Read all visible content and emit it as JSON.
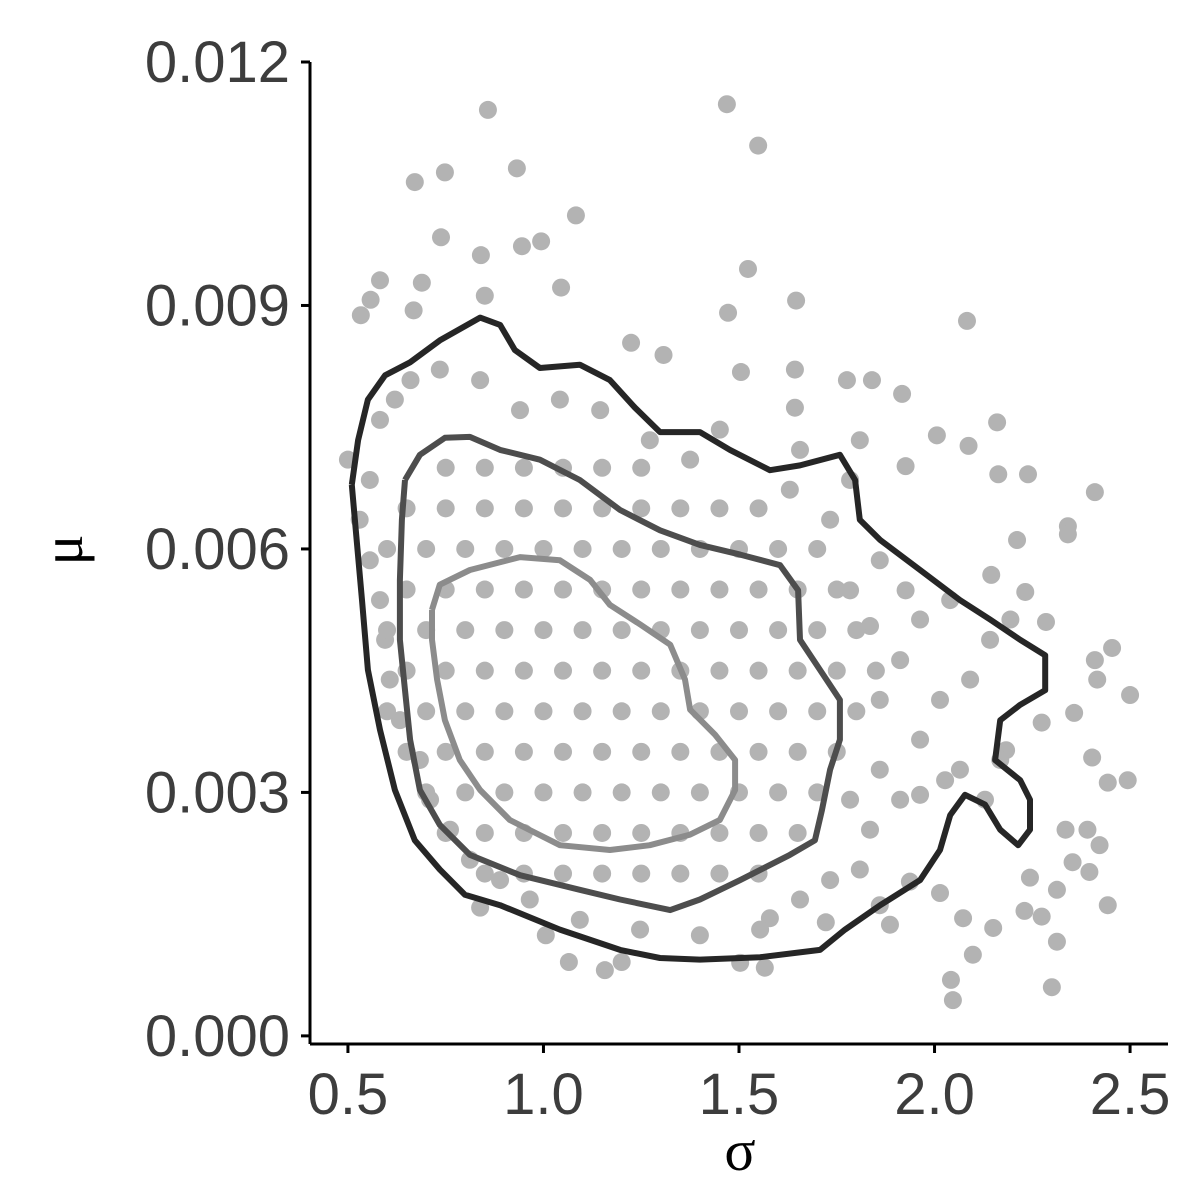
{
  "chart_data": {
    "type": "scatter",
    "xlabel": "σ",
    "ylabel": "μ",
    "xlim": [
      0.403,
      2.597
    ],
    "ylim": [
      -0.0001,
      0.012
    ],
    "xticks": [
      0.5,
      {
        "value": 1,
        "label": "1.0"
      },
      1.5,
      {
        "value": 2,
        "label": "2.0"
      },
      2.5
    ],
    "yticks": [
      {
        "value": 0,
        "label": "0.000"
      },
      0.003,
      0.006,
      0.009,
      0.012
    ],
    "points": {
      "color": "#b3b3b3",
      "x": [
        0.858,
        1.469,
        1.549,
        0.932,
        0.671,
        0.748,
        1.083,
        0.738,
        0.84,
        0.945,
        0.994,
        1.523,
        1.646,
        2.083,
        1.472,
        0.582,
        0.533,
        0.558,
        0.689,
        0.668,
        0.85,
        1.045,
        1.224,
        1.307,
        1.505,
        1.643,
        1.776,
        1.84,
        1.917,
        1.643,
        2.16,
        2.006,
        2.087,
        1.926,
        2.163,
        2.239,
        2.41,
        2.341,
        2.341,
        2.211,
        2.145,
        2.232,
        2.285,
        2.454,
        2.41,
        2.5,
        2.416,
        2.357,
        2.274,
        2.403,
        2.443,
        2.494,
        2.335,
        2.391,
        2.422,
        2.353,
        2.396,
        2.244,
        2.313,
        2.443,
        2.274,
        2.23,
        2.313,
        2.15,
        2.073,
        2.098,
        2.042,
        2.047,
        2.3,
        1.886,
        1.86,
        2.014,
        1.937,
        1.809,
        1.722,
        1.579,
        1.566,
        1.503,
        1.157,
        1.2,
        1.065,
        1.006,
        0.838,
        2.183,
        2.129,
        2.168,
        2.065,
        2.027,
        1.963,
        1.912,
        1.86,
        1.835,
        1.784,
        1.963,
        2.014,
        2.091,
        2.142,
        2.194,
        1.86,
        1.912,
        1.963,
        2.04,
        1.835,
        1.784,
        1.86,
        1.926,
        1.733,
        1.784,
        1.63,
        1.656,
        1.809,
        1.451,
        1.375,
        1.272,
        1.145,
        1.042,
        0.94,
        0.838,
        0.735,
        0.66,
        0.62,
        0.582,
        0.5,
        0.556,
        0.53,
        0.556,
        0.582,
        0.595,
        0.607,
        0.633,
        0.684,
        0.71,
        0.761,
        0.812,
        0.889,
        0.965,
        1.093,
        1.247,
        1.4,
        1.554,
        1.656,
        1.733,
        0.75,
        0.85,
        0.95,
        1.05,
        1.15,
        1.25,
        0.65,
        0.75,
        0.85,
        0.95,
        1.05,
        1.15,
        1.25,
        1.35,
        1.45,
        1.55,
        0.6,
        0.7,
        0.8,
        0.9,
        1.0,
        1.1,
        1.2,
        1.3,
        1.4,
        1.5,
        1.6,
        1.7,
        0.65,
        0.75,
        0.85,
        0.95,
        1.05,
        1.15,
        1.25,
        1.35,
        1.45,
        1.55,
        1.65,
        1.75,
        0.6,
        0.7,
        0.8,
        0.9,
        1.0,
        1.1,
        1.2,
        1.3,
        1.4,
        1.5,
        1.6,
        1.7,
        1.8,
        0.65,
        0.75,
        0.85,
        0.95,
        1.05,
        1.15,
        1.25,
        1.35,
        1.45,
        1.55,
        1.65,
        1.75,
        1.85,
        0.6,
        0.7,
        0.8,
        0.9,
        1.0,
        1.1,
        1.2,
        1.3,
        1.4,
        1.5,
        1.6,
        1.7,
        1.8,
        0.65,
        0.75,
        0.85,
        0.95,
        1.05,
        1.15,
        1.25,
        1.35,
        1.45,
        1.55,
        1.65,
        1.75,
        0.7,
        0.8,
        0.9,
        1.0,
        1.1,
        1.2,
        1.3,
        1.4,
        1.5,
        1.6,
        1.7,
        0.75,
        0.85,
        0.95,
        1.05,
        1.15,
        1.25,
        1.35,
        1.45,
        1.55,
        1.65,
        0.85,
        0.95,
        1.05,
        1.15,
        1.25,
        1.35,
        1.45,
        1.55
      ],
      "y": [
        0.01141,
        0.01148,
        0.01097,
        0.01069,
        0.01052,
        0.01064,
        0.01011,
        0.00984,
        0.00962,
        0.00973,
        0.00979,
        0.00945,
        0.00906,
        0.00881,
        0.00891,
        0.00931,
        0.00888,
        0.00907,
        0.00928,
        0.00894,
        0.00912,
        0.00922,
        0.00854,
        0.00839,
        0.00818,
        0.00821,
        0.00808,
        0.00808,
        0.00791,
        0.00774,
        0.00756,
        0.0074,
        0.00727,
        0.00702,
        0.00692,
        0.00692,
        0.0067,
        0.00628,
        0.00618,
        0.00611,
        0.00568,
        0.00547,
        0.0051,
        0.00478,
        0.00463,
        0.0042,
        0.00439,
        0.00398,
        0.00386,
        0.00343,
        0.00312,
        0.00315,
        0.00254,
        0.00254,
        0.00235,
        0.00214,
        0.00202,
        0.00195,
        0.0018,
        0.00161,
        0.00147,
        0.00154,
        0.00116,
        0.00133,
        0.00145,
        0.001,
        0.00069,
        0.00044,
        0.0006,
        0.00137,
        0.00161,
        0.00176,
        0.0019,
        0.00205,
        0.0014,
        0.00145,
        0.00084,
        0.0009,
        0.00081,
        0.00091,
        0.00091,
        0.00124,
        0.00158,
        0.00352,
        0.00291,
        0.0034,
        0.00328,
        0.00315,
        0.00297,
        0.00291,
        0.00328,
        0.00254,
        0.00291,
        0.00365,
        0.00414,
        0.00439,
        0.00488,
        0.00513,
        0.00414,
        0.00463,
        0.00513,
        0.00537,
        0.00505,
        0.00549,
        0.00586,
        0.00549,
        0.00636,
        0.00685,
        0.00673,
        0.00722,
        0.00734,
        0.00747,
        0.0071,
        0.00734,
        0.00771,
        0.00784,
        0.00771,
        0.00808,
        0.00821,
        0.00808,
        0.00784,
        0.00759,
        0.0071,
        0.00685,
        0.00636,
        0.00586,
        0.00537,
        0.00488,
        0.00439,
        0.00389,
        0.0034,
        0.00291,
        0.00254,
        0.00217,
        0.00192,
        0.00168,
        0.00143,
        0.00131,
        0.00124,
        0.00131,
        0.00168,
        0.00192,
        0.007,
        0.007,
        0.007,
        0.007,
        0.007,
        0.007,
        0.0065,
        0.0065,
        0.0065,
        0.0065,
        0.0065,
        0.0065,
        0.0065,
        0.0065,
        0.0065,
        0.0065,
        0.006,
        0.006,
        0.006,
        0.006,
        0.006,
        0.006,
        0.006,
        0.006,
        0.006,
        0.006,
        0.006,
        0.006,
        0.0055,
        0.0055,
        0.0055,
        0.0055,
        0.0055,
        0.0055,
        0.0055,
        0.0055,
        0.0055,
        0.0055,
        0.0055,
        0.0055,
        0.005,
        0.005,
        0.005,
        0.005,
        0.005,
        0.005,
        0.005,
        0.005,
        0.005,
        0.005,
        0.005,
        0.005,
        0.005,
        0.0045,
        0.0045,
        0.0045,
        0.0045,
        0.0045,
        0.0045,
        0.0045,
        0.0045,
        0.0045,
        0.0045,
        0.0045,
        0.0045,
        0.0045,
        0.004,
        0.004,
        0.004,
        0.004,
        0.004,
        0.004,
        0.004,
        0.004,
        0.004,
        0.004,
        0.004,
        0.004,
        0.004,
        0.0035,
        0.0035,
        0.0035,
        0.0035,
        0.0035,
        0.0035,
        0.0035,
        0.0035,
        0.0035,
        0.0035,
        0.0035,
        0.0035,
        0.003,
        0.003,
        0.003,
        0.003,
        0.003,
        0.003,
        0.003,
        0.003,
        0.003,
        0.003,
        0.003,
        0.0025,
        0.0025,
        0.0025,
        0.0025,
        0.0025,
        0.0025,
        0.0025,
        0.0025,
        0.0025,
        0.0025,
        0.002,
        0.002,
        0.002,
        0.002,
        0.002,
        0.002,
        0.002,
        0.002
      ]
    },
    "contours": [
      {
        "color": "#262626",
        "x": [
          0.51,
          0.526,
          0.551,
          0.595,
          0.659,
          0.735,
          0.838,
          0.889,
          0.927,
          0.991,
          1.093,
          1.17,
          1.234,
          1.298,
          1.4,
          1.477,
          1.579,
          1.656,
          1.758,
          1.797,
          1.809,
          1.861,
          1.963,
          2.065,
          2.142,
          2.219,
          2.283,
          2.283,
          2.219,
          2.168,
          2.155,
          2.219,
          2.244,
          2.244,
          2.214,
          2.168,
          2.129,
          2.078,
          2.04,
          2.014,
          1.963,
          1.861,
          1.771,
          1.707,
          1.554,
          1.4,
          1.298,
          1.196,
          1.042,
          0.889,
          0.799,
          0.735,
          0.671,
          0.62,
          0.582,
          0.551,
          0.536,
          0.52,
          0.51
        ],
        "y": [
          0.00679,
          0.00734,
          0.00784,
          0.00814,
          0.0083,
          0.00857,
          0.00885,
          0.00876,
          0.00845,
          0.00823,
          0.00827,
          0.00808,
          0.00774,
          0.00744,
          0.00744,
          0.00722,
          0.00697,
          0.00703,
          0.00716,
          0.00685,
          0.00636,
          0.00611,
          0.00574,
          0.00537,
          0.00513,
          0.00488,
          0.00469,
          0.00426,
          0.00408,
          0.00389,
          0.0034,
          0.00315,
          0.00291,
          0.00254,
          0.00235,
          0.00254,
          0.00285,
          0.00297,
          0.00272,
          0.00229,
          0.00192,
          0.00161,
          0.00131,
          0.00106,
          0.00097,
          0.00094,
          0.00096,
          0.00106,
          0.00131,
          0.00161,
          0.00174,
          0.00205,
          0.00241,
          0.00303,
          0.00377,
          0.00451,
          0.00537,
          0.00623,
          0.00679
        ]
      },
      {
        "color": "#4d4d4d",
        "x": [
          0.646,
          0.684,
          0.748,
          0.812,
          0.889,
          0.991,
          1.093,
          1.196,
          1.298,
          1.4,
          1.503,
          1.605,
          1.651,
          1.656,
          1.707,
          1.758,
          1.758,
          1.733,
          1.712,
          1.694,
          1.63,
          1.503,
          1.4,
          1.324,
          1.196,
          1.093,
          0.94,
          0.812,
          0.735,
          0.684,
          0.659,
          0.646,
          0.633,
          0.633,
          0.638,
          0.646
        ],
        "y": [
          0.00685,
          0.00716,
          0.00737,
          0.00738,
          0.00722,
          0.0071,
          0.00685,
          0.00648,
          0.00623,
          0.00605,
          0.00593,
          0.0058,
          0.00549,
          0.00488,
          0.00451,
          0.00414,
          0.00365,
          0.00328,
          0.00278,
          0.00241,
          0.00223,
          0.00192,
          0.00168,
          0.00155,
          0.00168,
          0.0018,
          0.00198,
          0.00223,
          0.0026,
          0.00303,
          0.00365,
          0.00426,
          0.00488,
          0.00562,
          0.00636,
          0.00685
        ]
      },
      {
        "color": "#8c8c8c",
        "x": [
          0.715,
          0.735,
          0.812,
          0.94,
          1.042,
          1.119,
          1.17,
          1.247,
          1.324,
          1.362,
          1.375,
          1.439,
          1.49,
          1.49,
          1.451,
          1.375,
          1.272,
          1.17,
          1.042,
          0.914,
          0.838,
          0.786,
          0.748,
          0.728,
          0.715,
          0.715
        ],
        "y": [
          0.00525,
          0.00556,
          0.00574,
          0.0059,
          0.00586,
          0.00562,
          0.00531,
          0.00507,
          0.00482,
          0.00439,
          0.00402,
          0.00371,
          0.0034,
          0.00303,
          0.00266,
          0.00248,
          0.00235,
          0.00229,
          0.00235,
          0.00266,
          0.00303,
          0.0034,
          0.00389,
          0.00439,
          0.00488,
          0.00525
        ]
      }
    ]
  }
}
